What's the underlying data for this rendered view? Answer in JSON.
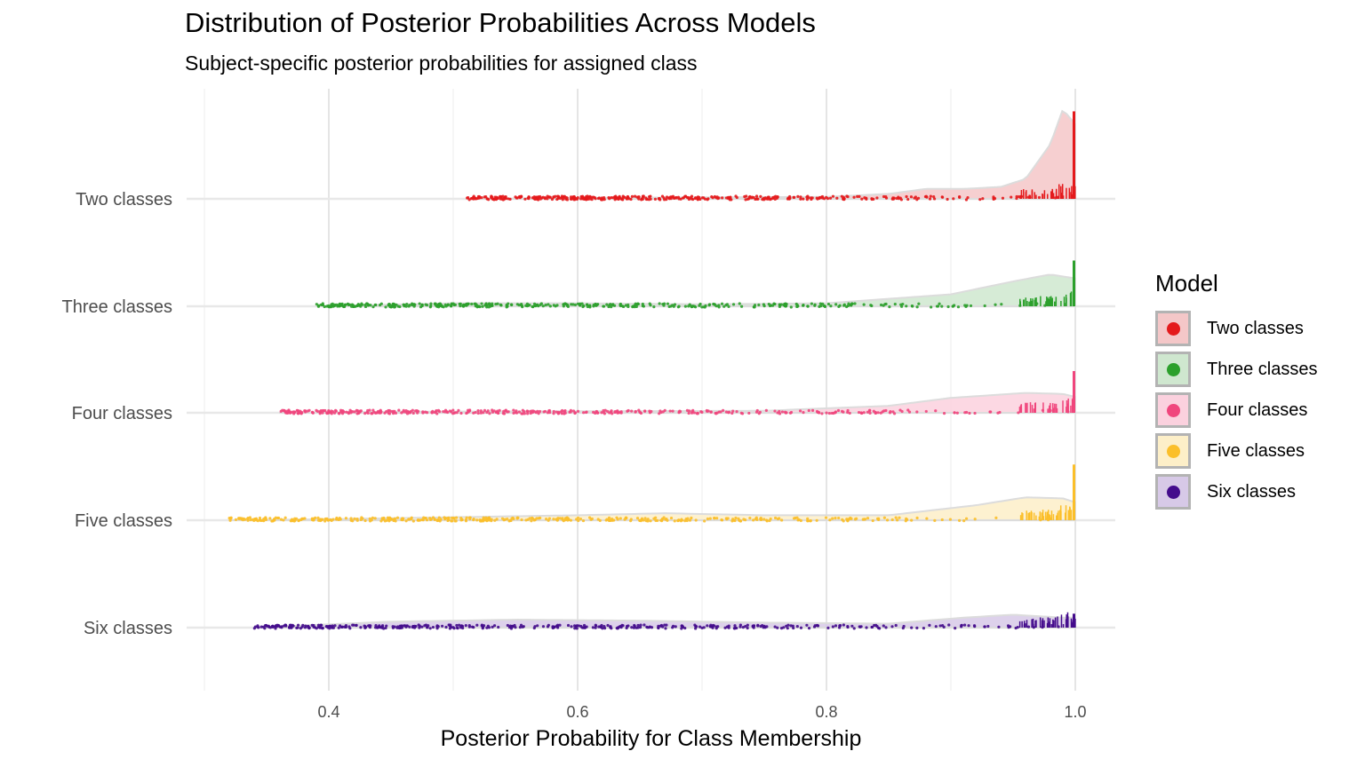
{
  "chart_data": {
    "type": "raincloud",
    "title": "Distribution of Posterior Probabilities Across Models",
    "subtitle": "Subject-specific posterior probabilities for assigned class",
    "xlabel": "Posterior Probability for Class Membership",
    "ylabel": "",
    "xlim": [
      0.3,
      1.0
    ],
    "x_ticks": [
      0.4,
      0.6,
      0.8,
      1.0
    ],
    "x_tick_labels": [
      "0.4",
      "0.6",
      "0.8",
      "1.0"
    ],
    "legend_title": "Model",
    "legend_position": "right",
    "grid": true,
    "series": [
      {
        "name": "Two classes",
        "color": "#e41a1c",
        "fill": "#f4c7c8",
        "min_value": 0.51,
        "density": [
          [
            0.51,
            0.0
          ],
          [
            0.6,
            0.01
          ],
          [
            0.7,
            0.015
          ],
          [
            0.8,
            0.02
          ],
          [
            0.85,
            0.05
          ],
          [
            0.88,
            0.1
          ],
          [
            0.91,
            0.1
          ],
          [
            0.94,
            0.12
          ],
          [
            0.96,
            0.2
          ],
          [
            0.98,
            0.55
          ],
          [
            0.99,
            0.9
          ],
          [
            1.0,
            0.75
          ]
        ],
        "peak_height": 0.88
      },
      {
        "name": "Three classes",
        "color": "#2ca02c",
        "fill": "#cfe7cf",
        "min_value": 0.39,
        "density": [
          [
            0.39,
            0.0
          ],
          [
            0.5,
            0.03
          ],
          [
            0.6,
            0.03
          ],
          [
            0.7,
            0.02
          ],
          [
            0.8,
            0.03
          ],
          [
            0.9,
            0.12
          ],
          [
            0.95,
            0.25
          ],
          [
            0.98,
            0.32
          ],
          [
            1.0,
            0.28
          ]
        ],
        "peak_height": 0.46
      },
      {
        "name": "Four classes",
        "color": "#f0467d",
        "fill": "#fbd1de",
        "min_value": 0.36,
        "density": [
          [
            0.36,
            0.0
          ],
          [
            0.45,
            0.01
          ],
          [
            0.6,
            0.015
          ],
          [
            0.75,
            0.02
          ],
          [
            0.85,
            0.07
          ],
          [
            0.9,
            0.15
          ],
          [
            0.96,
            0.2
          ],
          [
            0.99,
            0.19
          ],
          [
            1.0,
            0.16
          ]
        ],
        "peak_height": 0.42
      },
      {
        "name": "Five classes",
        "color": "#fbbf2a",
        "fill": "#fdefc8",
        "min_value": 0.32,
        "density": [
          [
            0.32,
            0.0
          ],
          [
            0.4,
            0.01
          ],
          [
            0.5,
            0.03
          ],
          [
            0.6,
            0.05
          ],
          [
            0.67,
            0.07
          ],
          [
            0.75,
            0.05
          ],
          [
            0.85,
            0.05
          ],
          [
            0.92,
            0.15
          ],
          [
            0.96,
            0.23
          ],
          [
            0.99,
            0.22
          ],
          [
            1.0,
            0.18
          ]
        ],
        "peak_height": 0.56
      },
      {
        "name": "Six classes",
        "color": "#440c8c",
        "fill": "#d7c9e7",
        "min_value": 0.34,
        "density": [
          [
            0.34,
            0.0
          ],
          [
            0.45,
            0.06
          ],
          [
            0.55,
            0.08
          ],
          [
            0.65,
            0.07
          ],
          [
            0.75,
            0.05
          ],
          [
            0.85,
            0.04
          ],
          [
            0.91,
            0.1
          ],
          [
            0.95,
            0.13
          ],
          [
            0.99,
            0.1
          ],
          [
            1.0,
            0.1
          ]
        ],
        "peak_height": 0.14
      }
    ]
  }
}
